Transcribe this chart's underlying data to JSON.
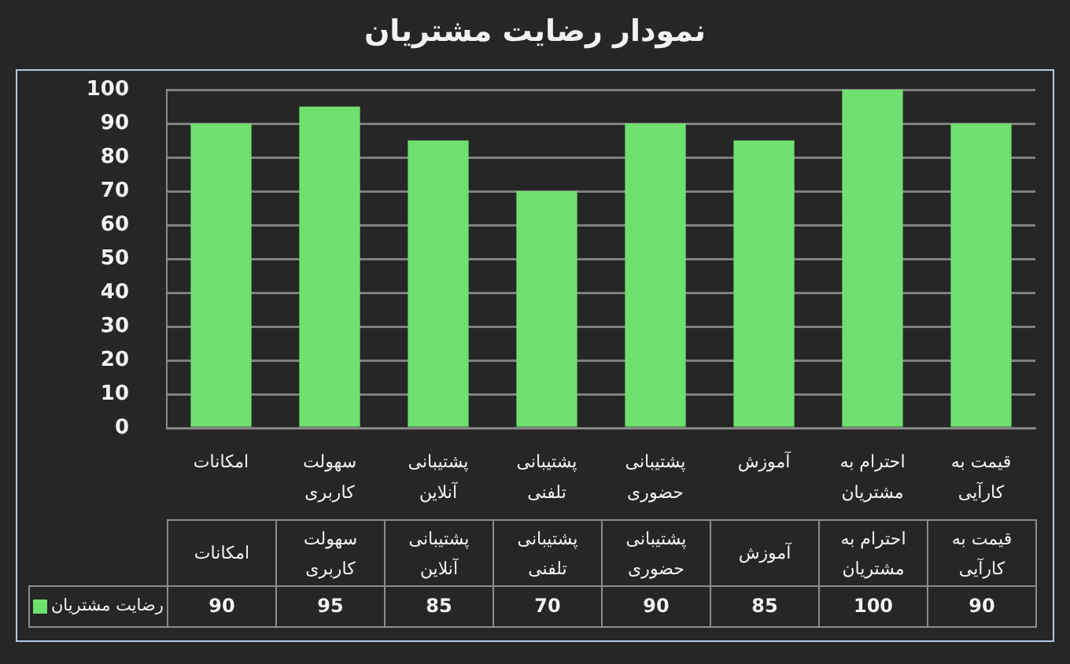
{
  "chart_data": {
    "type": "bar",
    "title": "نمودار رضایت مشتریان",
    "categories": [
      "امکانات",
      "سهولت کاربری",
      "پشتیبانی آنلاین",
      "پشتیبانی تلفنی",
      "پشتیبانی حضوری",
      "آموزش",
      "احترام به مشتریان",
      "قیمت به کارآیی"
    ],
    "series": [
      {
        "name": "رضایت مشتریان",
        "color": "#6ee06e",
        "values": [
          90,
          95,
          85,
          70,
          90,
          85,
          100,
          90
        ]
      }
    ],
    "ylim": [
      0,
      100
    ],
    "yticks": [
      0,
      10,
      20,
      30,
      40,
      50,
      60,
      70,
      80,
      90,
      100
    ],
    "grid": "y",
    "legend": "bottom left",
    "data_labels": true
  }
}
